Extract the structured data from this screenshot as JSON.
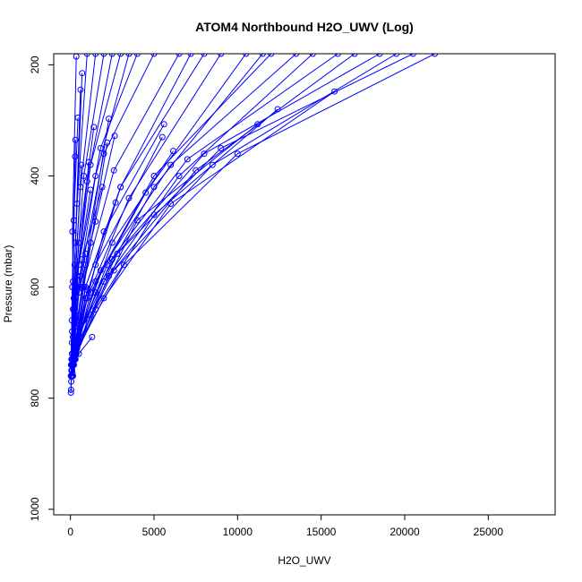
{
  "chart_data": {
    "type": "line",
    "title": "ATOM4 Northbound H2O_UWV (Log)",
    "xlabel": "H2O_UWV",
    "ylabel": "Pressure (mbar)",
    "xlim": [
      -1000,
      29000
    ],
    "ylim": [
      1010,
      180
    ],
    "y_reversed": true,
    "xticks": [
      0,
      5000,
      10000,
      15000,
      20000,
      25000
    ],
    "yticks": [
      200,
      400,
      600,
      800,
      1000
    ],
    "color": "#0000ff",
    "series": [
      {
        "x": [
          350,
          120,
          180,
          60,
          30
        ],
        "y": [
          185,
          500,
          640,
          730,
          790
        ]
      },
      {
        "x": [
          700,
          250,
          90,
          40
        ],
        "y": [
          215,
          560,
          700,
          785
        ]
      },
      {
        "x": [
          600,
          300,
          100,
          50
        ],
        "y": [
          245,
          520,
          680,
          770
        ]
      },
      {
        "x": [
          450,
          200,
          80,
          30
        ],
        "y": [
          295,
          480,
          660,
          760
        ]
      },
      {
        "x": [
          300,
          150,
          60
        ],
        "y": [
          335,
          590,
          750
        ]
      },
      {
        "x": [
          280,
          110,
          40
        ],
        "y": [
          365,
          600,
          740
        ]
      },
      {
        "x": [
          650,
          250,
          80
        ],
        "y": [
          380,
          610,
          760
        ]
      },
      {
        "x": [
          1400,
          500,
          150,
          60
        ],
        "y": [
          312,
          520,
          690,
          760
        ]
      },
      {
        "x": [
          2300,
          900,
          200,
          60
        ],
        "y": [
          297,
          560,
          700,
          760
        ]
      },
      {
        "x": [
          2200,
          800,
          150
        ],
        "y": [
          340,
          600,
          740
        ]
      },
      {
        "x": [
          2650,
          1200,
          300,
          80
        ],
        "y": [
          328,
          520,
          680,
          760
        ]
      },
      {
        "x": [
          5600,
          2000,
          600,
          100
        ],
        "y": [
          307,
          500,
          670,
          750
        ]
      },
      {
        "x": [
          5500,
          1500,
          400,
          100
        ],
        "y": [
          330,
          560,
          690,
          760
        ]
      },
      {
        "x": [
          6150,
          2500,
          800,
          150
        ],
        "y": [
          355,
          520,
          660,
          760
        ]
      },
      {
        "x": [
          11200,
          4000,
          1200,
          200
        ],
        "y": [
          307,
          480,
          650,
          740
        ]
      },
      {
        "x": [
          12400,
          5000,
          1500,
          250
        ],
        "y": [
          280,
          470,
          640,
          730
        ]
      },
      {
        "x": [
          15800,
          6000,
          2000,
          300
        ],
        "y": [
          248,
          450,
          620,
          720
        ]
      },
      {
        "x": [
          1200,
          400,
          100
        ],
        "y": [
          425,
          580,
          720
        ]
      },
      {
        "x": [
          1100,
          350,
          80
        ],
        "y": [
          375,
          600,
          740
        ]
      },
      {
        "x": [
          1900,
          700,
          200
        ],
        "y": [
          420,
          550,
          700
        ]
      },
      {
        "x": [
          2700,
          900,
          250
        ],
        "y": [
          448,
          600,
          710
        ]
      },
      {
        "x": [
          1500,
          500,
          150
        ],
        "y": [
          482,
          610,
          730
        ]
      },
      {
        "x": [
          900,
          300,
          90
        ],
        "y": [
          540,
          650,
          750
        ]
      },
      {
        "x": [
          1000,
          400,
          100
        ],
        "y": [
          605,
          690,
          760
        ]
      },
      {
        "x": [
          1300,
          500,
          120
        ],
        "y": [
          690,
          720,
          755
        ]
      },
      {
        "x": [
          8000,
          3000,
          900,
          200
        ],
        "y": [
          180,
          420,
          600,
          730
        ]
      },
      {
        "x": [
          9000,
          3500,
          1000,
          200
        ],
        "y": [
          180,
          440,
          620,
          740
        ]
      },
      {
        "x": [
          10500,
          4500,
          1200,
          250
        ],
        "y": [
          180,
          430,
          610,
          730
        ]
      },
      {
        "x": [
          12000,
          5000,
          1500,
          300
        ],
        "y": [
          180,
          400,
          590,
          720
        ]
      },
      {
        "x": [
          13500,
          6000,
          1800,
          300
        ],
        "y": [
          180,
          380,
          570,
          710
        ]
      },
      {
        "x": [
          16000,
          7000,
          2200,
          350
        ],
        "y": [
          180,
          370,
          560,
          700
        ]
      },
      {
        "x": [
          18500,
          8000,
          2500,
          400
        ],
        "y": [
          180,
          360,
          550,
          690
        ]
      },
      {
        "x": [
          20500,
          9000,
          2800,
          450
        ],
        "y": [
          180,
          350,
          540,
          690
        ]
      },
      {
        "x": [
          21800,
          10000,
          3200,
          500
        ],
        "y": [
          180,
          360,
          560,
          700
        ]
      },
      {
        "x": [
          4000,
          1800,
          500,
          100
        ],
        "y": [
          180,
          350,
          560,
          720
        ]
      },
      {
        "x": [
          3000,
          1200,
          400,
          100
        ],
        "y": [
          180,
          380,
          580,
          730
        ]
      },
      {
        "x": [
          2000,
          800,
          300,
          80
        ],
        "y": [
          180,
          400,
          600,
          740
        ]
      },
      {
        "x": [
          5000,
          2000,
          600,
          120
        ],
        "y": [
          180,
          360,
          580,
          720
        ]
      },
      {
        "x": [
          6500,
          2600,
          700,
          150
        ],
        "y": [
          180,
          390,
          600,
          740
        ]
      },
      {
        "x": [
          1500,
          600,
          200,
          60
        ],
        "y": [
          180,
          420,
          620,
          750
        ]
      },
      {
        "x": [
          1000,
          400,
          150,
          50
        ],
        "y": [
          180,
          450,
          640,
          760
        ]
      },
      {
        "x": [
          2500,
          1000,
          300,
          80
        ],
        "y": [
          180,
          410,
          610,
          750
        ]
      },
      {
        "x": [
          3500,
          1500,
          450,
          100
        ],
        "y": [
          180,
          400,
          600,
          740
        ]
      },
      {
        "x": [
          7200,
          3000,
          900,
          200
        ],
        "y": [
          180,
          420,
          620,
          740
        ]
      },
      {
        "x": [
          17000,
          7500,
          2300,
          400
        ],
        "y": [
          180,
          390,
          580,
          710
        ]
      },
      {
        "x": [
          19500,
          8500,
          2600,
          450
        ],
        "y": [
          180,
          380,
          570,
          700
        ]
      },
      {
        "x": [
          14500,
          6500,
          2000,
          350
        ],
        "y": [
          180,
          400,
          590,
          720
        ]
      },
      {
        "x": [
          11500,
          5000,
          1500,
          300
        ],
        "y": [
          180,
          420,
          610,
          730
        ]
      }
    ]
  }
}
